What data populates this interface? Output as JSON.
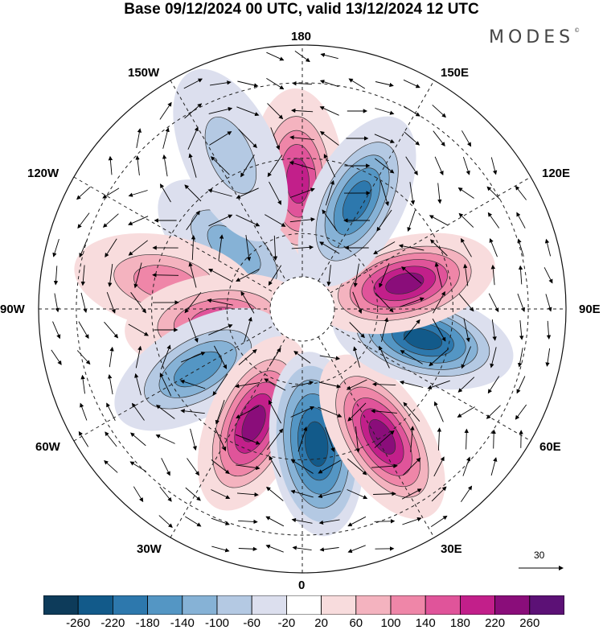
{
  "title": "Base 09/12/2024 00 UTC, valid 13/12/2024 12 UTC",
  "brand": "MODES",
  "brand_mark": "©",
  "longitude_labels": {
    "top": "180",
    "bottom": "0",
    "left": "90W",
    "right": "90E",
    "nw_upper": "150W",
    "nw_lower": "120W",
    "ne_upper": "150E",
    "ne_lower": "120E",
    "sw_upper": "60W",
    "sw_lower": "30W",
    "se_upper": "60E",
    "se_lower": "30E"
  },
  "wind_reference": {
    "value": "30"
  },
  "colorbar": {
    "ticks": [
      "-260",
      "-220",
      "-180",
      "-140",
      "-100",
      "-60",
      "-20",
      "20",
      "60",
      "100",
      "140",
      "180",
      "220",
      "260"
    ],
    "colors": [
      "#0d3b5a",
      "#125a8a",
      "#2d78ad",
      "#5496c4",
      "#86b2d6",
      "#b4c9e3",
      "#dcdfee",
      "#ffffff",
      "#f8dcdd",
      "#f4b3bf",
      "#ef86a8",
      "#e0549a",
      "#c21f8a",
      "#8a0d7a",
      "#5c1176"
    ]
  },
  "anomaly_cells": [
    {
      "lon": 178,
      "lat": 56,
      "value": 190
    },
    {
      "lon": 131,
      "lat": 66,
      "value": -130
    },
    {
      "lon": 101,
      "lat": 53,
      "value": 120
    },
    {
      "lon": 82,
      "lat": 67,
      "value": 160
    },
    {
      "lon": 60,
      "lat": 58,
      "value": -150
    },
    {
      "lon": 23,
      "lat": 57,
      "value": 250
    },
    {
      "lon": -6,
      "lat": 54,
      "value": -220
    },
    {
      "lon": -32,
      "lat": 50,
      "value": 240
    },
    {
      "lon": -76,
      "lat": 57,
      "value": -240
    },
    {
      "lon": -104,
      "lat": 62,
      "value": 260
    },
    {
      "lon": -153,
      "lat": 58,
      "value": -190
    },
    {
      "lon": 155,
      "lat": 45,
      "value": -90
    }
  ]
}
